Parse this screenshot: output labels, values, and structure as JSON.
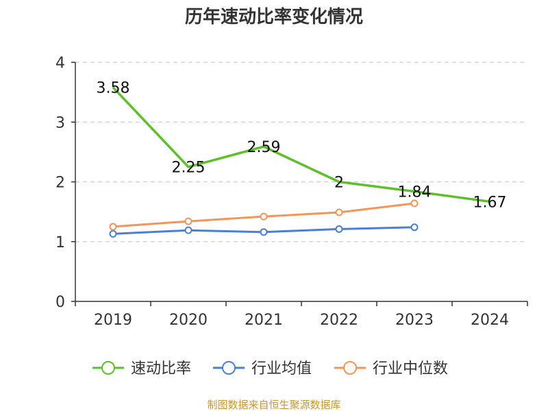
{
  "chart_data": {
    "type": "line",
    "title": "历年速动比率变化情况",
    "categories": [
      "2019",
      "2020",
      "2021",
      "2022",
      "2023",
      "2024"
    ],
    "ylim": [
      0,
      4
    ],
    "yticks": [
      "0",
      "1",
      "2",
      "3",
      "4"
    ],
    "grid": true,
    "legend_position": "bottom",
    "series": [
      {
        "name": "速动比率",
        "color": "#5cc02a",
        "values": [
          3.58,
          2.25,
          2.59,
          2.0,
          1.84,
          1.67
        ],
        "labels": [
          "3.58",
          "2.25",
          "2.59",
          "2",
          "1.84",
          "1.67"
        ],
        "markers": false
      },
      {
        "name": "行业均值",
        "color": "#4a7fd6",
        "values": [
          1.13,
          1.19,
          1.16,
          1.21,
          1.24,
          null
        ],
        "markers": true
      },
      {
        "name": "行业中位数",
        "color": "#f2955a",
        "values": [
          1.25,
          1.34,
          1.42,
          1.49,
          1.64,
          null
        ],
        "markers": true
      }
    ],
    "source_note": "制图数据来自恒生聚源数据库"
  }
}
